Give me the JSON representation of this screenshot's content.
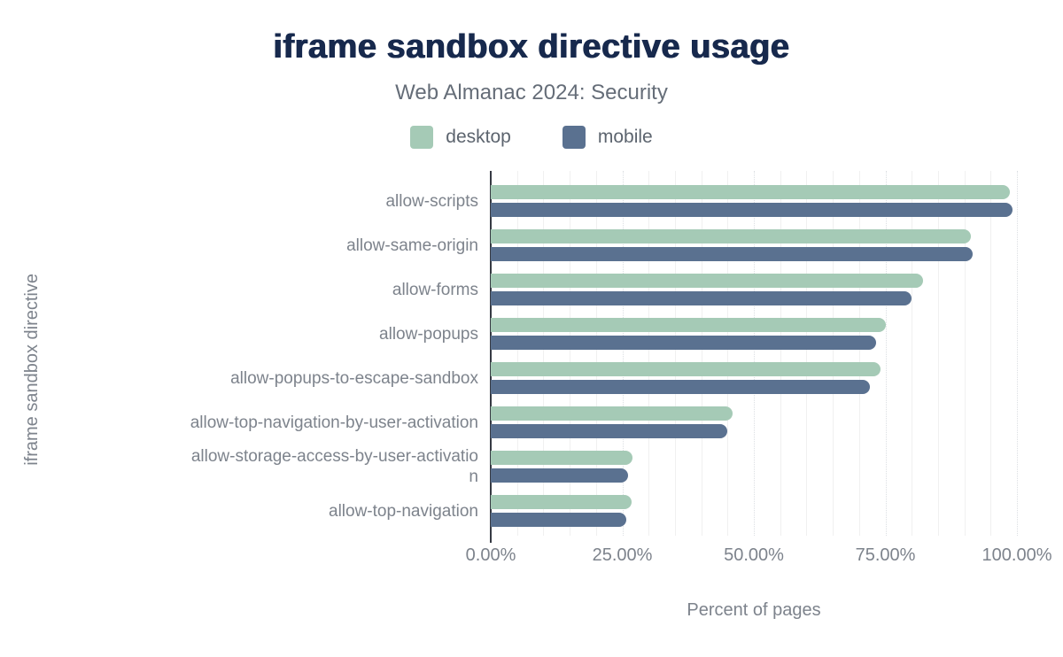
{
  "chart_data": {
    "type": "bar",
    "orientation": "horizontal",
    "title": "iframe sandbox directive usage",
    "subtitle": "Web Almanac 2024: Security",
    "xlabel": "Percent of pages",
    "ylabel": "iframe sandbox directive",
    "xlim": [
      0,
      100
    ],
    "grid": "vertical",
    "legend_position": "top",
    "categories": [
      "allow-scripts",
      "allow-same-origin",
      "allow-forms",
      "allow-popups",
      "allow-popups-to-escape-sandbox",
      "allow-top-navigation-by-user-activation",
      "allow-storage-access-by-user-activation",
      "allow-top-navigation"
    ],
    "category_display_lines": [
      [
        "allow-scripts"
      ],
      [
        "allow-same-origin"
      ],
      [
        "allow-forms"
      ],
      [
        "allow-popups"
      ],
      [
        "allow-popups-to-escape-sandbox"
      ],
      [
        "allow-top-navigation-by-user-activation"
      ],
      [
        "allow-storage-access-by-user-activatio",
        "n"
      ],
      [
        "allow-top-navigation"
      ]
    ],
    "series": [
      {
        "name": "desktop",
        "color": "#a5cab6",
        "values": [
          98.6,
          91.2,
          82.2,
          75.0,
          74.1,
          46.0,
          27.0,
          26.7
        ]
      },
      {
        "name": "mobile",
        "color": "#5a7190",
        "values": [
          99.1,
          91.5,
          79.9,
          73.3,
          72.1,
          44.9,
          26.1,
          25.8
        ]
      }
    ],
    "x_ticks": [
      "0.00%",
      "25.00%",
      "50.00%",
      "75.00%",
      "100.00%"
    ],
    "x_tick_values": [
      0,
      25,
      50,
      75,
      100
    ]
  },
  "colors": {
    "title": "#17294d",
    "axis_line": "#363a43",
    "label_gray": "#7d838c"
  }
}
